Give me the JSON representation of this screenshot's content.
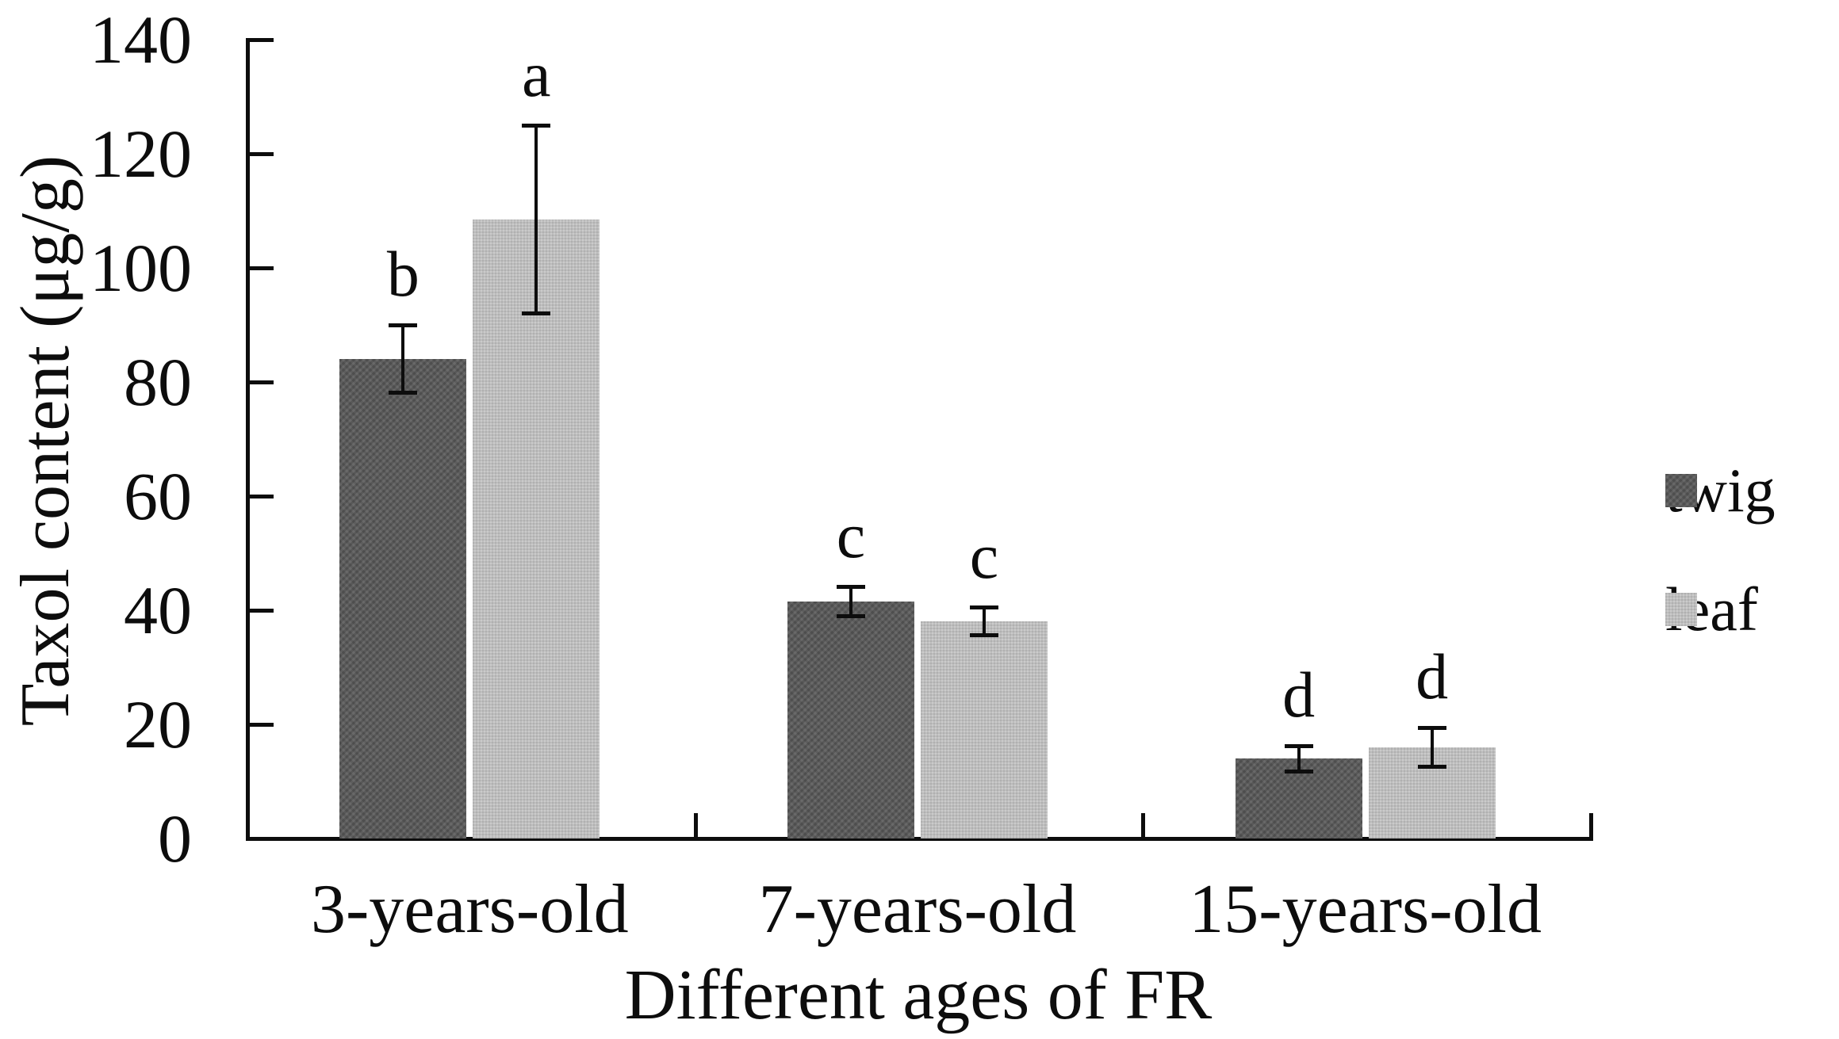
{
  "chart_data": {
    "type": "bar",
    "title": "",
    "xlabel": "Different ages of FR",
    "ylabel": "Taxol content (μg/g)",
    "categories": [
      "3-years-old",
      "7-years-old",
      "15-years-old"
    ],
    "series": [
      {
        "name": "twig",
        "color": "#5d5d5d",
        "values": [
          84,
          41.5,
          14
        ],
        "errors": [
          6,
          2.6,
          2.3
        ],
        "letters": [
          "b",
          "c",
          "d"
        ]
      },
      {
        "name": "leaf",
        "color": "#c3c3c3",
        "values": [
          108.5,
          38,
          16
        ],
        "errors": [
          16.5,
          2.5,
          3.5
        ],
        "letters": [
          "a",
          "c",
          "d"
        ]
      }
    ],
    "ylim": [
      0,
      140
    ],
    "ytick_step": 20,
    "ytick_labels": [
      "0",
      "20",
      "40",
      "60",
      "80",
      "100",
      "120",
      "140"
    ],
    "grid": false,
    "legend_position": "right",
    "axis_color": "#0d0d0d",
    "bar_gap_color": "#ffffff"
  }
}
